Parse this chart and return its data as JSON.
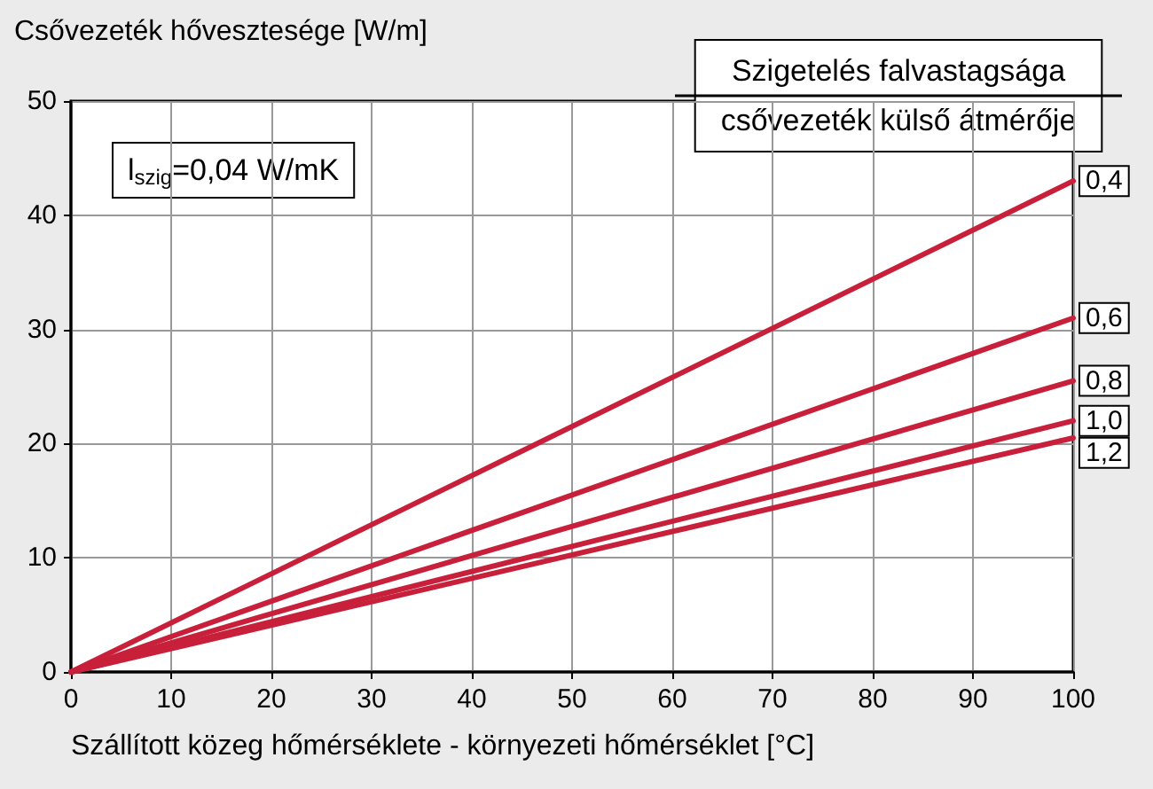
{
  "chart_data": {
    "type": "line",
    "ylabel": "Csővezeték hővesztesége [W/m]",
    "xlabel": "Szállított közeg hőmérséklete - környezeti hőmérséklet [°C]",
    "legend_title": "Szigetelés falvastagsága\ncsővezeték külső átmérője",
    "annotations": [
      "l$_{szig}$=0,04 W/mK"
    ],
    "x": [
      0,
      100
    ],
    "series": [
      {
        "name": "0,4",
        "color": "#c8203a",
        "values": [
          0,
          43
        ]
      },
      {
        "name": "0,6",
        "color": "#c8203a",
        "values": [
          0,
          31
        ]
      },
      {
        "name": "0,8",
        "color": "#c8203a",
        "values": [
          0,
          25.5
        ]
      },
      {
        "name": "1,0",
        "color": "#c8203a",
        "values": [
          0,
          22
        ]
      },
      {
        "name": "1,2",
        "color": "#c8203a",
        "values": [
          0,
          20.5
        ]
      }
    ],
    "xlim": [
      0,
      100
    ],
    "xticks": [
      0,
      10,
      20,
      30,
      40,
      50,
      60,
      70,
      80,
      90,
      100
    ],
    "ylim": [
      0,
      50
    ],
    "yticks": [
      0,
      10,
      20,
      30,
      40,
      50
    ],
    "grid": true,
    "marker": "none",
    "line_style": "solid"
  }
}
